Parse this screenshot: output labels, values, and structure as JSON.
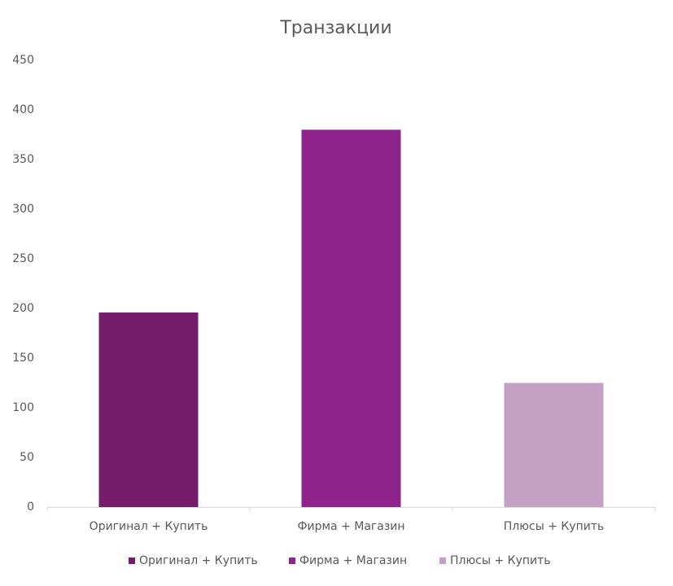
{
  "chart_data": {
    "type": "bar",
    "title": "Транзакции",
    "categories": [
      "Оригинал + Купить",
      "Фирма + Магазин",
      "Плюсы + Купить"
    ],
    "values": [
      196,
      380,
      125
    ],
    "colors": [
      "#751c6d",
      "#8e248b",
      "#c4a1c4"
    ],
    "ylim": [
      0,
      450
    ],
    "yticks": [
      0,
      50,
      100,
      150,
      200,
      250,
      300,
      350,
      400,
      450
    ],
    "grid": false,
    "legend": "bottom"
  }
}
